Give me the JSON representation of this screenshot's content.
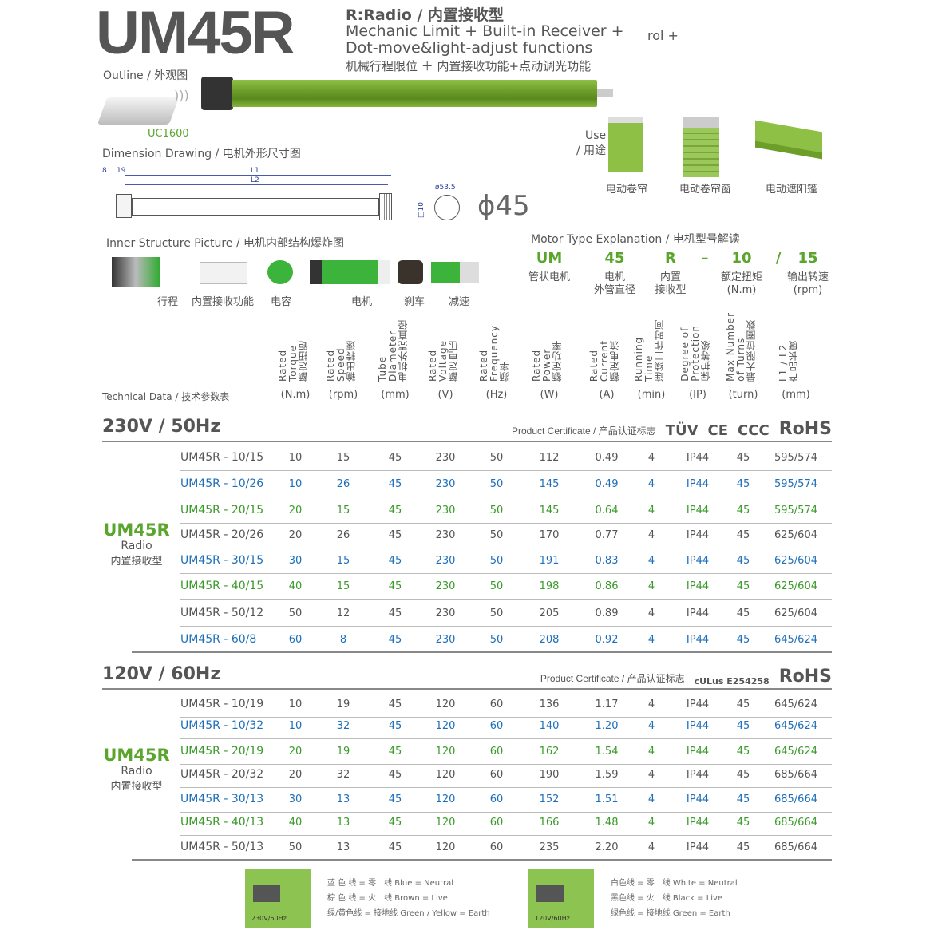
{
  "header": {
    "model": "UM45R",
    "type_line": "R:Radio / 内置接收型",
    "desc_en1": "Mechanic Limit + Built-in Receiver +",
    "desc_fragment": "rol +",
    "desc_en2": "Dot-move&light-adjust functions",
    "desc_cn": "机械行程限位 ＋ 内置接收功能+点动调光功能"
  },
  "outline": {
    "label": "Outline / 外观图",
    "remote": "UC1600"
  },
  "use": {
    "label": "Use\n/ 用途",
    "items": [
      "电动卷帘",
      "电动卷帘窗",
      "电动遮阳篷"
    ]
  },
  "dimension": {
    "label": "Dimension Drawing / 电机外形尺寸图",
    "d8": "8",
    "d19": "19",
    "L1": "L1",
    "L2": "L2",
    "d53": "ø53.5",
    "d10": "□10",
    "phi": "ϕ45"
  },
  "inner": {
    "label": "Inner Structure Picture / 电机内部结构爆炸图",
    "parts": [
      "行程",
      "内置接收功能",
      "电容",
      "电机",
      "刹车",
      "减速"
    ]
  },
  "motor_type": {
    "label": "Motor Type Explanation / 电机型号解读",
    "codes": [
      {
        "code": "UM",
        "desc": "管状电机"
      },
      {
        "code": "45",
        "desc": "电机\n外管直径"
      },
      {
        "code": "R",
        "desc": "内置\n接收型"
      },
      {
        "code": "–",
        "desc": ""
      },
      {
        "code": "10",
        "desc": "额定扭矩\n(N.m)"
      },
      {
        "code": "/",
        "desc": ""
      },
      {
        "code": "15",
        "desc": "输出转速\n(rpm)"
      }
    ]
  },
  "tech": {
    "label": "Technical Data / 技术参数表",
    "columns": [
      {
        "h": "Rated\nTorque\n额定扭距",
        "u": "(N.m)"
      },
      {
        "h": "Rated\nSpeed\n输出转速",
        "u": "(rpm)"
      },
      {
        "h": "Tube\nDiameter\n电机外壳直径",
        "u": "(mm)"
      },
      {
        "h": "Rated\nVoltage\n额定电压",
        "u": "(V)"
      },
      {
        "h": "Rated\nFrequency\n频率",
        "u": "(Hz)"
      },
      {
        "h": "Rated\nPower\n额定功率",
        "u": "(W)"
      },
      {
        "h": "Rated\nCurrent\n额定电流",
        "u": "(A)"
      },
      {
        "h": "Running\nTime\n连续工作时间",
        "u": "(min)"
      },
      {
        "h": "Degree of\nProtection\n保护等级",
        "u": "(IP)"
      },
      {
        "h": "Max Number\nof Turns\n最大限位圈数",
        "u": "(turn)"
      },
      {
        "h": "L1 / L2\n产品长度",
        "u": "(mm)"
      }
    ]
  },
  "colors": {
    "gray": "#555555",
    "blue": "#1e6fb8",
    "green": "#3a9a2a",
    "brand_green": "#5aa52c"
  },
  "sections": [
    {
      "title": "230V / 50Hz",
      "cert_label": "Product Certificate / 产品认证标志",
      "certs": [
        "TÜV",
        "CE",
        "CCC",
        "RoHS"
      ],
      "group": {
        "name": "UM45R",
        "sub": "Radio",
        "cn": "内置接收型"
      },
      "rows": [
        {
          "color": "gray",
          "model": "UM45R - 10/15",
          "v": [
            "10",
            "15",
            "45",
            "230",
            "50",
            "112",
            "0.49",
            "4",
            "IP44",
            "45",
            "595/574"
          ]
        },
        {
          "color": "blue",
          "model": "UM45R - 10/26",
          "v": [
            "10",
            "26",
            "45",
            "230",
            "50",
            "145",
            "0.49",
            "4",
            "IP44",
            "45",
            "595/574"
          ]
        },
        {
          "color": "green",
          "model": "UM45R - 20/15",
          "v": [
            "20",
            "15",
            "45",
            "230",
            "50",
            "145",
            "0.64",
            "4",
            "IP44",
            "45",
            "595/574"
          ]
        },
        {
          "color": "gray",
          "model": "UM45R - 20/26",
          "v": [
            "20",
            "26",
            "45",
            "230",
            "50",
            "170",
            "0.77",
            "4",
            "IP44",
            "45",
            "625/604"
          ]
        },
        {
          "color": "blue",
          "model": "UM45R - 30/15",
          "v": [
            "30",
            "15",
            "45",
            "230",
            "50",
            "191",
            "0.83",
            "4",
            "IP44",
            "45",
            "625/604"
          ]
        },
        {
          "color": "green",
          "model": "UM45R - 40/15",
          "v": [
            "40",
            "15",
            "45",
            "230",
            "50",
            "198",
            "0.86",
            "4",
            "IP44",
            "45",
            "625/604"
          ]
        },
        {
          "color": "gray",
          "model": "UM45R - 50/12",
          "v": [
            "50",
            "12",
            "45",
            "230",
            "50",
            "205",
            "0.89",
            "4",
            "IP44",
            "45",
            "625/604"
          ]
        },
        {
          "color": "blue",
          "model": "UM45R - 60/8",
          "v": [
            "60",
            "8",
            "45",
            "230",
            "50",
            "208",
            "0.92",
            "4",
            "IP44",
            "45",
            "645/624"
          ]
        }
      ]
    },
    {
      "title": "120V / 60Hz",
      "cert_label": "Product Certificate / 产品认证标志",
      "certs": [
        "cULus E254258",
        "RoHS"
      ],
      "group": {
        "name": "UM45R",
        "sub": "Radio",
        "cn": "内置接收型"
      },
      "rows": [
        {
          "color": "gray",
          "model": "UM45R - 10/19",
          "v": [
            "10",
            "19",
            "45",
            "120",
            "60",
            "136",
            "1.17",
            "4",
            "IP44",
            "45",
            "645/624"
          ]
        },
        {
          "color": "blue",
          "model": "UM45R - 10/32",
          "v": [
            "10",
            "32",
            "45",
            "120",
            "60",
            "140",
            "1.20",
            "4",
            "IP44",
            "45",
            "645/624"
          ]
        },
        {
          "color": "green",
          "model": "UM45R - 20/19",
          "v": [
            "20",
            "19",
            "45",
            "120",
            "60",
            "162",
            "1.54",
            "4",
            "IP44",
            "45",
            "645/624"
          ]
        },
        {
          "color": "gray",
          "model": "UM45R - 20/32",
          "v": [
            "20",
            "32",
            "45",
            "120",
            "60",
            "190",
            "1.59",
            "4",
            "IP44",
            "45",
            "685/664"
          ]
        },
        {
          "color": "blue",
          "model": "UM45R - 30/13",
          "v": [
            "30",
            "13",
            "45",
            "120",
            "60",
            "152",
            "1.51",
            "4",
            "IP44",
            "45",
            "685/664"
          ]
        },
        {
          "color": "green",
          "model": "UM45R - 40/13",
          "v": [
            "40",
            "13",
            "45",
            "120",
            "60",
            "166",
            "1.48",
            "4",
            "IP44",
            "45",
            "685/664"
          ]
        },
        {
          "color": "gray",
          "model": "UM45R - 50/13",
          "v": [
            "50",
            "13",
            "45",
            "120",
            "60",
            "235",
            "2.20",
            "4",
            "IP44",
            "45",
            "685/664"
          ]
        }
      ]
    }
  ],
  "wiring": [
    {
      "tag": "230V/50Hz",
      "lines": [
        "蓝 色 线 = 零　线  Blue = Neutral",
        "棕 色 线 = 火　线  Brown = Live",
        "绿/黄色线 = 接地线  Green / Yellow = Earth"
      ]
    },
    {
      "tag": "120V/60Hz",
      "lines": [
        "白色线 = 零　线  White = Neutral",
        "黑色线 = 火　线  Black = Live",
        "绿色线 = 接地线  Green = Earth"
      ]
    }
  ]
}
